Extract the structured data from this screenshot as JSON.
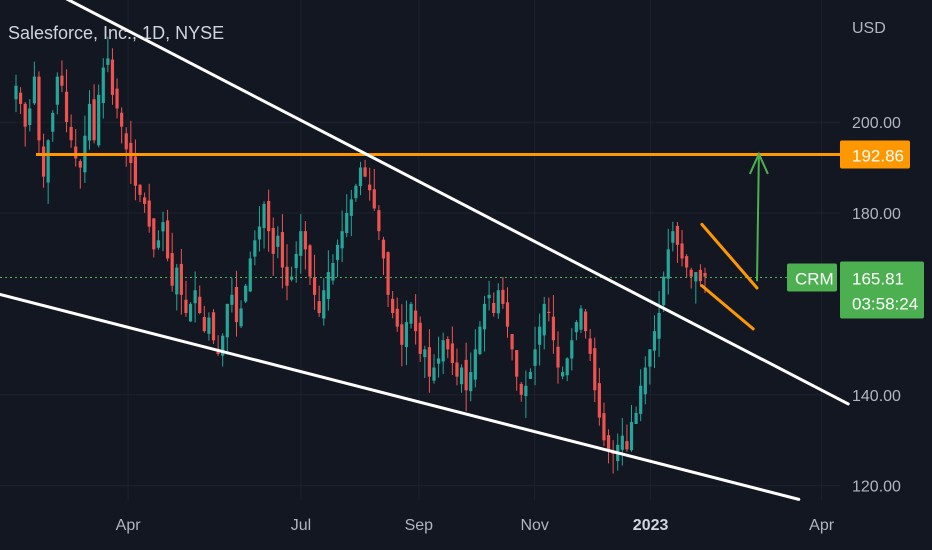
{
  "window": {
    "title": "Salesforce, Inc., 1D, NYSE"
  },
  "chart_data": {
    "type": "candlestick",
    "symbol": "CRM",
    "title": "Salesforce, Inc., 1D, NYSE",
    "currency": "USD",
    "interval": "1D",
    "exchange": "NYSE",
    "y_ticks": [
      "200.00",
      "180.00",
      "140.00",
      "120.00"
    ],
    "y_tick_values": [
      200,
      180,
      140,
      120
    ],
    "x_ticks": [
      "Apr",
      "Jul",
      "Sep",
      "Nov",
      "2023",
      "Apr"
    ],
    "x_tick_dates": [
      "2022-04-01",
      "2022-07-01",
      "2022-09-01",
      "2022-11-01",
      "2023-01-01",
      "2023-04-01"
    ],
    "ylim": [
      114,
      224
    ],
    "xlim": [
      "2022-02-01",
      "2023-05-01"
    ],
    "grid": true,
    "last_price": 165.81,
    "last_price_label": "165.81",
    "countdown": "03:58:24",
    "resistance": 192.86,
    "resistance_label": "192.86",
    "colors": {
      "up": "#26a69a",
      "down": "#ef5350",
      "resistance": "#ff9800",
      "trendline": "#ffffff",
      "price_badge": "#4caf50",
      "arrow": "#4caf50"
    },
    "candles_close": [
      208,
      204,
      199,
      203,
      210,
      196,
      188,
      196,
      202,
      210,
      208,
      200,
      196,
      192,
      190,
      197,
      204,
      196,
      206,
      212,
      214,
      206,
      203,
      199,
      194,
      191,
      186,
      184,
      182,
      177,
      172,
      174,
      178,
      170,
      164,
      168,
      162,
      158,
      160,
      163,
      158,
      154,
      157,
      152,
      149,
      153,
      160,
      162,
      156,
      159,
      164,
      170,
      174,
      177,
      182,
      176,
      171,
      175,
      168,
      164,
      166,
      171,
      176,
      172,
      166,
      162,
      158,
      163,
      167,
      169,
      173,
      176,
      180,
      183,
      186,
      190,
      188,
      185,
      181,
      176,
      170,
      162,
      158,
      155,
      151,
      156,
      160,
      154,
      149,
      150,
      144,
      146,
      148,
      152,
      150,
      147,
      144,
      146,
      141,
      145,
      150,
      155,
      160,
      162,
      158,
      163,
      160,
      155,
      150,
      144,
      140,
      142,
      145,
      150,
      155,
      160,
      158,
      152,
      146,
      145,
      148,
      152,
      156,
      159,
      154,
      149,
      141,
      135,
      130,
      128,
      127,
      129,
      131,
      128,
      134,
      136,
      142,
      146,
      150,
      154,
      158,
      166,
      172,
      176,
      173,
      170,
      168,
      166,
      167,
      165,
      166
    ],
    "drawings": {
      "upper_trendline": [
        [
          "2022-02-05",
          232
        ],
        [
          "2023-04-15",
          138
        ]
      ],
      "lower_trendline": [
        [
          "2022-01-15",
          163
        ],
        [
          "2023-03-20",
          117
        ]
      ],
      "flag_upper": [
        [
          "2023-01-28",
          177.5
        ],
        [
          "2023-02-26",
          163.5
        ]
      ],
      "flag_lower": [
        [
          "2023-01-28",
          164
        ],
        [
          "2023-02-24",
          154.5
        ]
      ],
      "breakout_arrow": [
        [
          "2023-02-26",
          165
        ],
        [
          "2023-02-27",
          193
        ]
      ]
    }
  }
}
